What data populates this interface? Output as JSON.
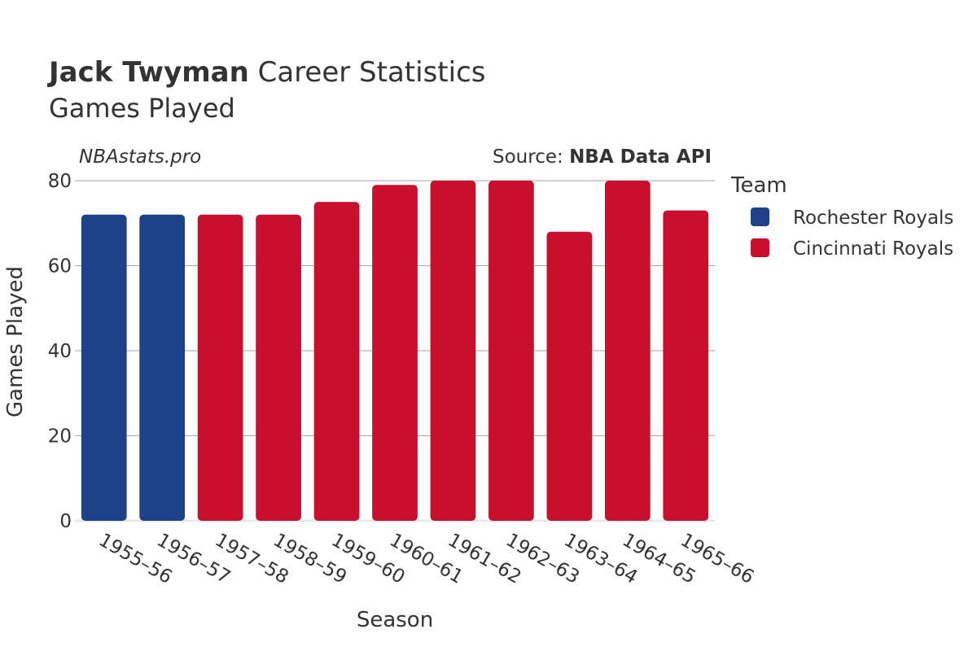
{
  "header": {
    "player_name": "Jack Twyman",
    "title_suffix": " Career Statistics",
    "subtitle": "Games Played"
  },
  "watermark": "NBAstats.pro",
  "source": {
    "label": "Source: ",
    "name": "NBA Data API"
  },
  "legend": {
    "title": "Team",
    "items": [
      {
        "name": "Rochester Royals",
        "color": "#1d428a"
      },
      {
        "name": "Cincinnati Royals",
        "color": "#c8102e"
      }
    ]
  },
  "chart_data": {
    "type": "bar",
    "title": "Jack Twyman Career Statistics",
    "subtitle": "Games Played",
    "xlabel": "Season",
    "ylabel": "Games Played",
    "ylim": [
      0,
      80
    ],
    "yticks": [
      0,
      20,
      40,
      60,
      80
    ],
    "grid": true,
    "legend_position": "right",
    "categories": [
      "1955–56",
      "1956–57",
      "1957–58",
      "1958–59",
      "1959–60",
      "1960–61",
      "1961–62",
      "1962–63",
      "1963–64",
      "1964–65",
      "1965–66"
    ],
    "values": [
      72,
      72,
      72,
      72,
      75,
      79,
      80,
      80,
      68,
      80,
      73
    ],
    "teams": [
      "Rochester Royals",
      "Rochester Royals",
      "Cincinnati Royals",
      "Cincinnati Royals",
      "Cincinnati Royals",
      "Cincinnati Royals",
      "Cincinnati Royals",
      "Cincinnati Royals",
      "Cincinnati Royals",
      "Cincinnati Royals",
      "Cincinnati Royals"
    ]
  }
}
